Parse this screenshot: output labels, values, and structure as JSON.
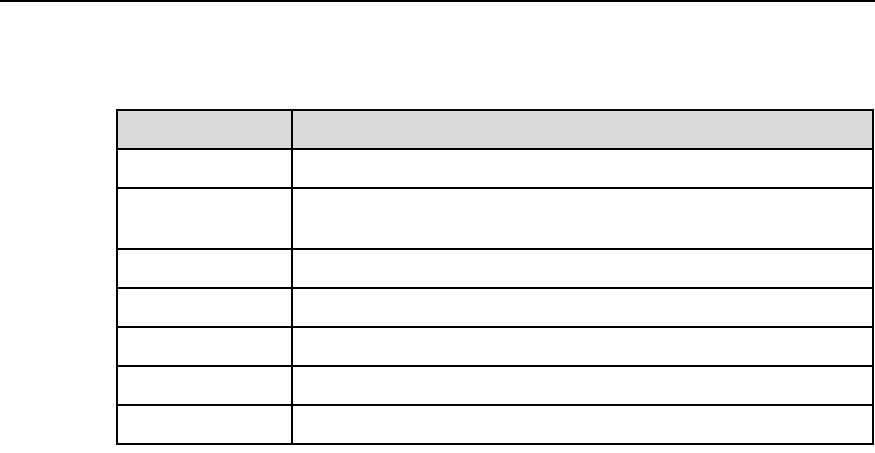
{
  "table": {
    "headers": [
      "",
      ""
    ],
    "rows": [
      [
        "",
        ""
      ],
      [
        "",
        ""
      ],
      [
        "",
        ""
      ],
      [
        "",
        ""
      ],
      [
        "",
        ""
      ],
      [
        "",
        ""
      ],
      [
        "",
        ""
      ]
    ],
    "header_bg": "#d9d9d9"
  }
}
